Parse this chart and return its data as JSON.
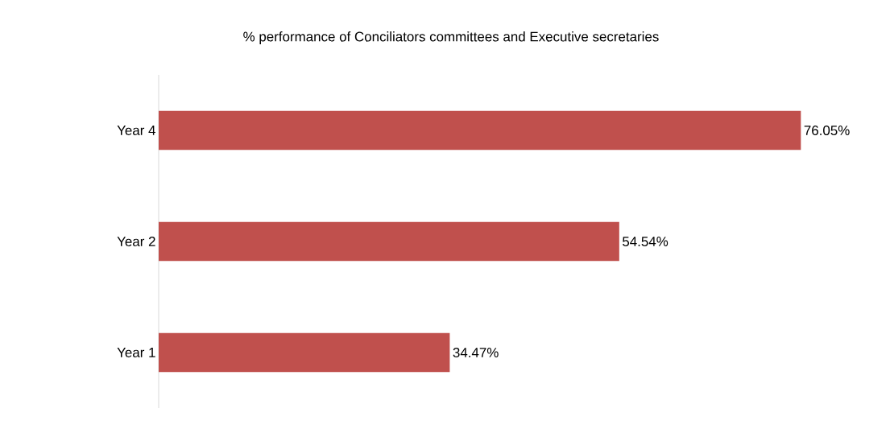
{
  "chart_data": {
    "type": "bar",
    "orientation": "horizontal",
    "title": "% performance of Conciliators committees and Executive secretaries",
    "categories": [
      "Year 4",
      "Year 2",
      "Year 1"
    ],
    "values": [
      76.05,
      54.54,
      34.47
    ],
    "value_labels": [
      "76.05%",
      "54.54%",
      "34.47%"
    ],
    "color": "#c0504d",
    "tick_labels": "y"
  }
}
